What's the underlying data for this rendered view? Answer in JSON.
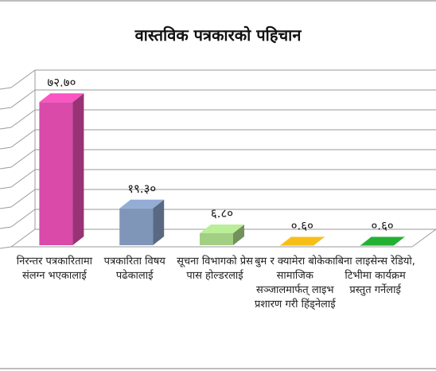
{
  "chart_data": {
    "type": "bar",
    "title": "वास्तविक पत्रकारको पहिचान",
    "xlabel": "",
    "ylabel": "",
    "categories": [
      "निरन्तर पत्रकारितामा संलग्न भएकालाई",
      "पत्रकारिता विषय पढेकालाई",
      "सूचना विभागको प्रेस पास होल्डरलाई",
      "बुम र क्यामेरा बोकेका सामाजिक सञ्जालमार्फत् लाइभ प्रशारण गरी हिंड्नेलाई",
      "बिना लाइसेन्स रेडियो, टिभीमा कार्यक्रम प्रस्तुत गर्नेलाई"
    ],
    "values": [
      72.7,
      19.3,
      6.8,
      0.6,
      0.6
    ],
    "data_labels": [
      "७२.७०",
      "१९.३०",
      "६.८०",
      "०.६०",
      "०.६०"
    ],
    "colors": [
      "#d94aa9",
      "#8096b9",
      "#a3cf84",
      "#d6a615",
      "#1e9a2c"
    ],
    "ylim": [
      0,
      80
    ],
    "grid": true,
    "legend": "none"
  }
}
